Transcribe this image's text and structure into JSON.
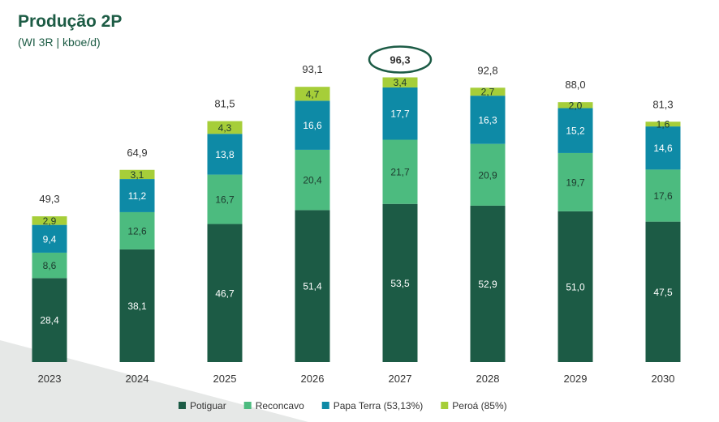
{
  "title": "Produção 2P",
  "subtitle": "(WI 3R | kboe/d)",
  "colors": {
    "title": "#1d5c45",
    "potiguar": "#1c5b45",
    "reconcavo": "#4cbb7f",
    "papa_terra": "#0e8aa6",
    "peroa": "#a6ce39",
    "highlight_ring": "#1c5b45"
  },
  "highlight_category": "2027",
  "chart_data": {
    "type": "bar",
    "stacked": true,
    "categories": [
      "2023",
      "2024",
      "2025",
      "2026",
      "2027",
      "2028",
      "2029",
      "2030"
    ],
    "series": [
      {
        "name": "Potiguar",
        "values": [
          28.4,
          38.1,
          46.7,
          51.4,
          53.5,
          52.9,
          51.0,
          47.5
        ],
        "labels": [
          "28,4",
          "38,1",
          "46,7",
          "51,4",
          "53,5",
          "52,9",
          "51,0",
          "47,5"
        ]
      },
      {
        "name": "Reconcavo",
        "values": [
          8.6,
          12.6,
          16.7,
          20.4,
          21.7,
          20.9,
          19.7,
          17.6
        ],
        "labels": [
          "8,6",
          "12,6",
          "16,7",
          "20,4",
          "21,7",
          "20,9",
          "19,7",
          "17,6"
        ]
      },
      {
        "name": "Papa Terra (53,13%)",
        "values": [
          9.4,
          11.2,
          13.8,
          16.6,
          17.7,
          16.3,
          15.2,
          14.6
        ],
        "labels": [
          "9,4",
          "11,2",
          "13,8",
          "16,6",
          "17,7",
          "16,3",
          "15,2",
          "14,6"
        ]
      },
      {
        "name": "Peroá (85%)",
        "values": [
          2.9,
          3.1,
          4.3,
          4.7,
          3.4,
          2.7,
          2.0,
          1.6
        ],
        "labels": [
          "2,9",
          "3,1",
          "4,3",
          "4,7",
          "3,4",
          "2,7",
          "2,0",
          "1,6"
        ]
      }
    ],
    "totals": [
      49.3,
      64.9,
      81.5,
      93.1,
      96.3,
      92.8,
      88.0,
      81.3
    ],
    "total_labels": [
      "49,3",
      "64,9",
      "81,5",
      "93,1",
      "96,3",
      "92,8",
      "88,0",
      "81,3"
    ],
    "ylim": [
      0,
      96.3
    ],
    "legend_position": "bottom",
    "grid": false
  }
}
